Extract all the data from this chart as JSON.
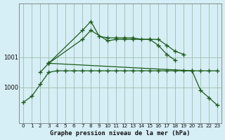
{
  "title": "Graphe pression niveau de la mer (hPa)",
  "background_color": "#d6eef5",
  "grid_color": "#9dbfaa",
  "line_color": "#1a5c1a",
  "x_labels": [
    "0",
    "1",
    "2",
    "3",
    "4",
    "5",
    "6",
    "7",
    "8",
    "9",
    "10",
    "11",
    "12",
    "13",
    "14",
    "15",
    "16",
    "17",
    "18",
    "19",
    "20",
    "21",
    "22",
    "23"
  ],
  "series": [
    {
      "x": [
        0,
        1,
        2,
        3,
        4,
        5,
        6,
        7,
        8,
        9,
        10,
        11,
        12,
        13,
        14,
        15,
        16,
        17,
        18,
        19,
        20,
        21,
        22,
        23
      ],
      "y": [
        999.5,
        999.7,
        1000.1,
        1000.5,
        1000.55,
        1000.55,
        1000.55,
        1000.55,
        1000.55,
        1000.55,
        1000.55,
        1000.55,
        1000.55,
        1000.55,
        1000.55,
        1000.55,
        1000.55,
        1000.55,
        1000.55,
        1000.55,
        1000.55,
        1000.55,
        1000.55,
        1000.55
      ]
    },
    {
      "x": [
        2,
        3,
        7,
        8,
        10,
        11,
        12,
        13,
        15,
        16,
        17,
        18,
        19
      ],
      "y": [
        1000.5,
        1000.8,
        1001.6,
        1001.9,
        1001.55,
        1001.6,
        1001.6,
        1001.6,
        1001.6,
        1001.6,
        1001.4,
        1001.2,
        1001.1
      ]
    },
    {
      "x": [
        3,
        7,
        8,
        9,
        10,
        11,
        12,
        13,
        14,
        15,
        16,
        17,
        18
      ],
      "y": [
        1000.8,
        1001.9,
        1002.2,
        1001.7,
        1001.65,
        1001.65,
        1001.65,
        1001.65,
        1001.6,
        1001.6,
        1001.4,
        1001.1,
        1000.9
      ]
    },
    {
      "x": [
        3,
        20,
        21,
        22,
        23
      ],
      "y": [
        1000.8,
        1000.55,
        999.9,
        999.65,
        999.4
      ]
    }
  ],
  "ylim_min": 998.8,
  "ylim_max": 1002.8,
  "yticks": [
    1000.0,
    1001.0
  ],
  "ytick_labels": [
    "1000",
    "1001"
  ]
}
